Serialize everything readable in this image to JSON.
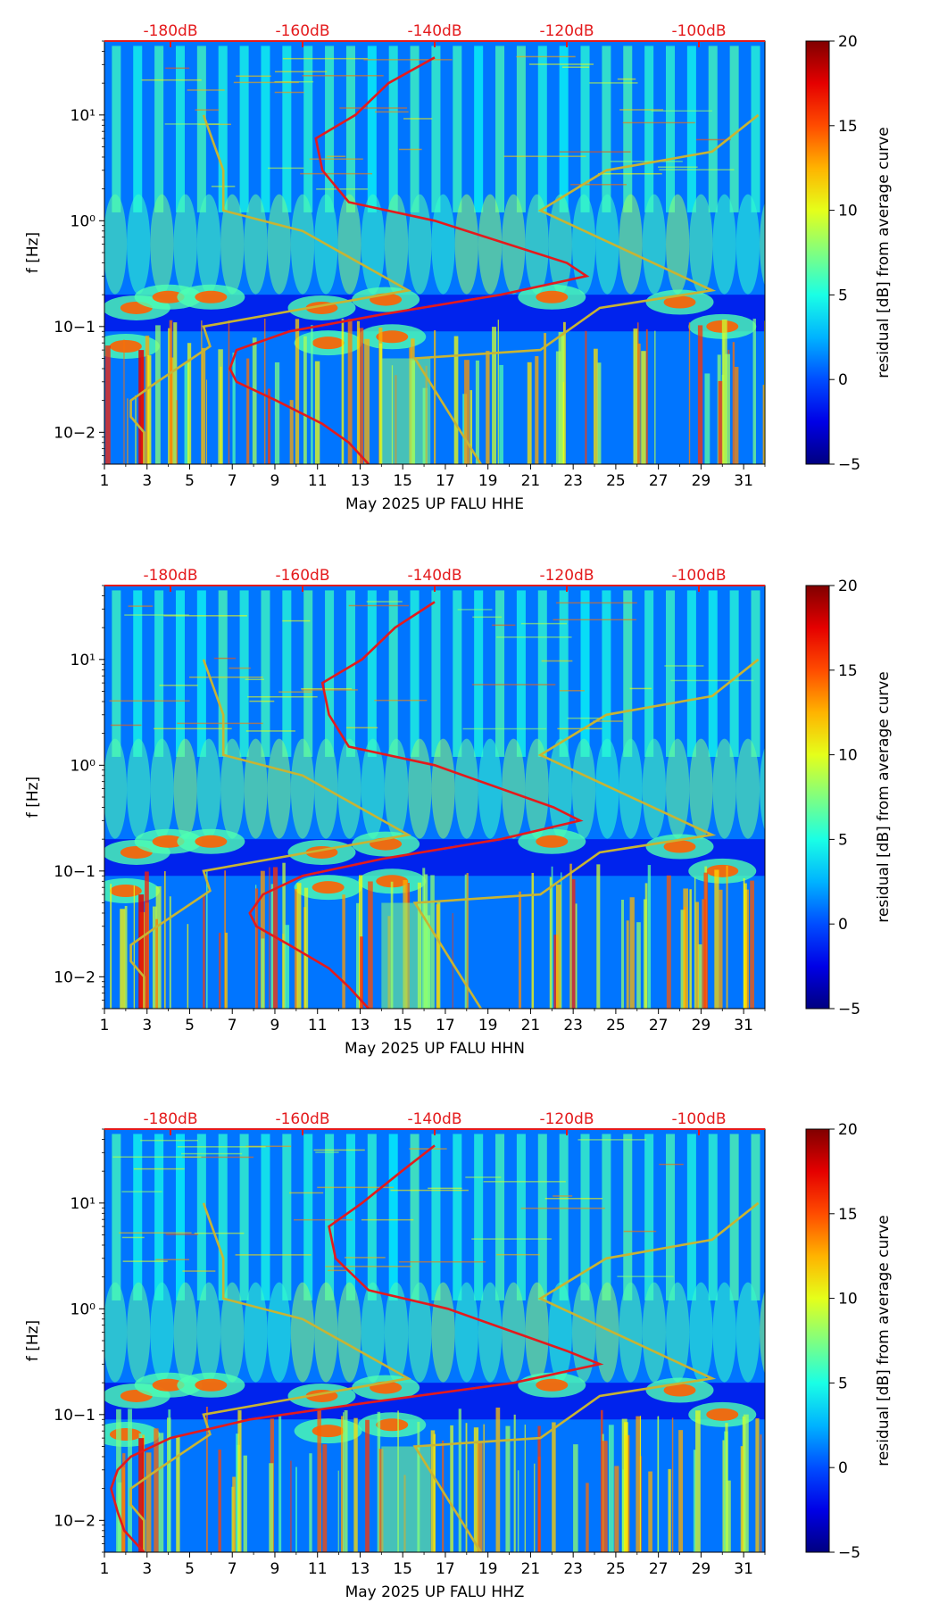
{
  "colors": {
    "noise_model": "#c8b433",
    "median_curve": "#e41a1c",
    "db_label": "#e41a1c",
    "colormap": "jet"
  },
  "colorbar": {
    "label": "residual [dB] from average curve",
    "range": [
      -5,
      20
    ],
    "ticks": [
      "20",
      "15",
      "10",
      "5",
      "0",
      "−5"
    ]
  },
  "chart_data": [
    {
      "type": "heatmap",
      "title": "",
      "xlabel": "May 2025 UP FALU  HHE",
      "ylabel": "f [Hz]",
      "x_ticks": [
        "1",
        "3",
        "5",
        "7",
        "9",
        "11",
        "13",
        "15",
        "17",
        "19",
        "21",
        "23",
        "25",
        "27",
        "29",
        "31"
      ],
      "y_ticks": [
        "10−2",
        "10−1",
        "10⁰",
        "10¹"
      ],
      "ylim_hz": [
        0.005,
        50
      ],
      "xlim_day": [
        1,
        32
      ],
      "db_axis_ticks": [
        "-180dB",
        "-160dB",
        "-140dB",
        "-120dB",
        "-100dB"
      ],
      "db_axis_values": [
        -180,
        -160,
        -140,
        -120,
        -100
      ],
      "db_axis_range": [
        -190,
        -90
      ],
      "noise_model_low": [
        [
          -175,
          10
        ],
        [
          -172,
          3
        ],
        [
          -172,
          1.25
        ],
        [
          -160,
          0.8
        ],
        [
          -144,
          0.22
        ],
        [
          -175,
          0.1
        ],
        [
          -174,
          0.065
        ],
        [
          -182,
          0.03
        ],
        [
          -186,
          0.02
        ],
        [
          -186,
          0.014
        ],
        [
          -184,
          0.01
        ],
        [
          -184,
          0.005
        ]
      ],
      "noise_model_high": [
        [
          -91,
          10
        ],
        [
          -98,
          4.5
        ],
        [
          -114,
          3
        ],
        [
          -124,
          1.25
        ],
        [
          -98,
          0.22
        ],
        [
          -115,
          0.15
        ],
        [
          -124,
          0.06
        ],
        [
          -143,
          0.05
        ],
        [
          -133,
          0.005
        ]
      ],
      "median_curve": [
        [
          -140,
          35
        ],
        [
          -147,
          20
        ],
        [
          -152,
          10
        ],
        [
          -158,
          6
        ],
        [
          -157,
          3
        ],
        [
          -153,
          1.5
        ],
        [
          -140,
          1
        ],
        [
          -120,
          0.4
        ],
        [
          -117,
          0.3
        ],
        [
          -130,
          0.2
        ],
        [
          -148,
          0.13
        ],
        [
          -162,
          0.09
        ],
        [
          -170,
          0.06
        ],
        [
          -171,
          0.04
        ],
        [
          -170,
          0.03
        ],
        [
          -164,
          0.02
        ],
        [
          -157,
          0.012
        ],
        [
          -153,
          0.008
        ],
        [
          -150,
          0.005
        ]
      ]
    },
    {
      "type": "heatmap",
      "title": "",
      "xlabel": "May 2025 UP FALU  HHN",
      "ylabel": "f [Hz]",
      "x_ticks": [
        "1",
        "3",
        "5",
        "7",
        "9",
        "11",
        "13",
        "15",
        "17",
        "19",
        "21",
        "23",
        "25",
        "27",
        "29",
        "31"
      ],
      "y_ticks": [
        "10−2",
        "10−1",
        "10⁰",
        "10¹"
      ],
      "ylim_hz": [
        0.005,
        50
      ],
      "xlim_day": [
        1,
        32
      ],
      "db_axis_ticks": [
        "-180dB",
        "-160dB",
        "-140dB",
        "-120dB",
        "-100dB"
      ],
      "db_axis_values": [
        -180,
        -160,
        -140,
        -120,
        -100
      ],
      "db_axis_range": [
        -190,
        -90
      ],
      "noise_model_low": [
        [
          -175,
          10
        ],
        [
          -172,
          3
        ],
        [
          -172,
          1.25
        ],
        [
          -160,
          0.8
        ],
        [
          -144,
          0.22
        ],
        [
          -175,
          0.1
        ],
        [
          -174,
          0.065
        ],
        [
          -182,
          0.03
        ],
        [
          -186,
          0.02
        ],
        [
          -186,
          0.014
        ],
        [
          -184,
          0.01
        ],
        [
          -184,
          0.005
        ]
      ],
      "noise_model_high": [
        [
          -91,
          10
        ],
        [
          -98,
          4.5
        ],
        [
          -114,
          3
        ],
        [
          -124,
          1.25
        ],
        [
          -98,
          0.22
        ],
        [
          -115,
          0.15
        ],
        [
          -124,
          0.06
        ],
        [
          -143,
          0.05
        ],
        [
          -133,
          0.005
        ]
      ],
      "median_curve": [
        [
          -140,
          35
        ],
        [
          -146,
          20
        ],
        [
          -151,
          10
        ],
        [
          -157,
          6
        ],
        [
          -156,
          3
        ],
        [
          -153,
          1.5
        ],
        [
          -140,
          1
        ],
        [
          -122,
          0.4
        ],
        [
          -118,
          0.3
        ],
        [
          -130,
          0.2
        ],
        [
          -148,
          0.13
        ],
        [
          -160,
          0.09
        ],
        [
          -166,
          0.06
        ],
        [
          -168,
          0.04
        ],
        [
          -167,
          0.03
        ],
        [
          -162,
          0.02
        ],
        [
          -156,
          0.012
        ],
        [
          -153,
          0.008
        ],
        [
          -150,
          0.005
        ]
      ]
    },
    {
      "type": "heatmap",
      "title": "",
      "xlabel": "May 2025 UP FALU  HHZ",
      "ylabel": "f [Hz]",
      "x_ticks": [
        "1",
        "3",
        "5",
        "7",
        "9",
        "11",
        "13",
        "15",
        "17",
        "19",
        "21",
        "23",
        "25",
        "27",
        "29",
        "31"
      ],
      "y_ticks": [
        "10−2",
        "10−1",
        "10⁰",
        "10¹"
      ],
      "ylim_hz": [
        0.005,
        50
      ],
      "xlim_day": [
        1,
        32
      ],
      "db_axis_ticks": [
        "-180dB",
        "-160dB",
        "-140dB",
        "-120dB",
        "-100dB"
      ],
      "db_axis_values": [
        -180,
        -160,
        -140,
        -120,
        -100
      ],
      "db_axis_range": [
        -190,
        -90
      ],
      "noise_model_low": [
        [
          -175,
          10
        ],
        [
          -172,
          3
        ],
        [
          -172,
          1.25
        ],
        [
          -160,
          0.8
        ],
        [
          -144,
          0.22
        ],
        [
          -175,
          0.1
        ],
        [
          -174,
          0.065
        ],
        [
          -182,
          0.03
        ],
        [
          -186,
          0.02
        ],
        [
          -186,
          0.014
        ],
        [
          -184,
          0.01
        ],
        [
          -184,
          0.005
        ]
      ],
      "noise_model_high": [
        [
          -91,
          10
        ],
        [
          -98,
          4.5
        ],
        [
          -114,
          3
        ],
        [
          -124,
          1.25
        ],
        [
          -98,
          0.22
        ],
        [
          -115,
          0.15
        ],
        [
          -124,
          0.06
        ],
        [
          -143,
          0.05
        ],
        [
          -133,
          0.005
        ]
      ],
      "median_curve": [
        [
          -140,
          35
        ],
        [
          -145,
          20
        ],
        [
          -151,
          10
        ],
        [
          -156,
          6
        ],
        [
          -155,
          3
        ],
        [
          -150,
          1.5
        ],
        [
          -138,
          1
        ],
        [
          -120,
          0.4
        ],
        [
          -115,
          0.3
        ],
        [
          -128,
          0.2
        ],
        [
          -150,
          0.13
        ],
        [
          -168,
          0.09
        ],
        [
          -180,
          0.06
        ],
        [
          -186,
          0.04
        ],
        [
          -188,
          0.03
        ],
        [
          -189,
          0.02
        ],
        [
          -188,
          0.012
        ],
        [
          -187,
          0.008
        ],
        [
          -184,
          0.005
        ]
      ]
    }
  ]
}
